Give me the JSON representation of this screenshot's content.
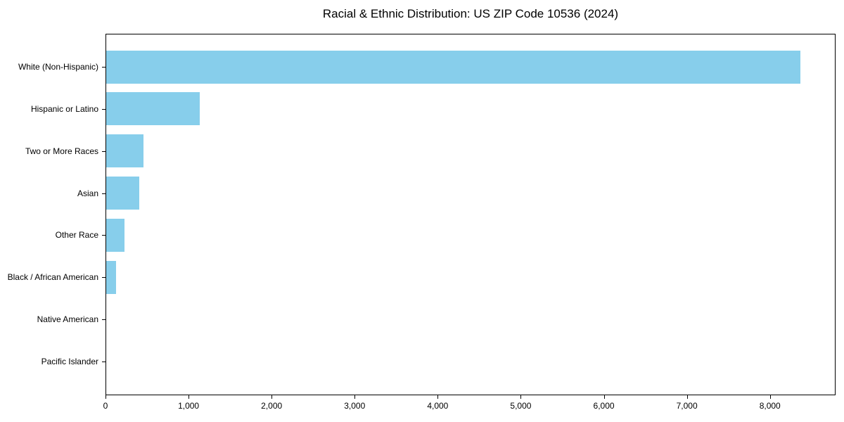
{
  "window": {
    "background_color": "#ffffff",
    "text_color": "#000000"
  },
  "chart_data": {
    "type": "bar",
    "orientation": "horizontal",
    "title": "Racial & Ethnic Distribution: US ZIP Code 10536 (2024)",
    "categories": [
      "White (Non-Hispanic)",
      "Hispanic or Latino",
      "Two or More Races",
      "Asian",
      "Other Race",
      "Black / African American",
      "Native American",
      "Pacific Islander"
    ],
    "values": [
      8360,
      1125,
      450,
      400,
      220,
      120,
      0,
      0
    ],
    "xlabel": "",
    "ylabel": "",
    "xlim": [
      0,
      8790
    ],
    "xticks": [
      {
        "value": 0,
        "label": "0"
      },
      {
        "value": 1000,
        "label": "1,000"
      },
      {
        "value": 2000,
        "label": "2,000"
      },
      {
        "value": 3000,
        "label": "3,000"
      },
      {
        "value": 4000,
        "label": "4,000"
      },
      {
        "value": 5000,
        "label": "5,000"
      },
      {
        "value": 6000,
        "label": "6,000"
      },
      {
        "value": 7000,
        "label": "7,000"
      },
      {
        "value": 8000,
        "label": "8,000"
      }
    ],
    "grid": false,
    "legend": "none",
    "bar_color": "#87CEEB",
    "axis_color": "#000000",
    "text_color": "#000000"
  }
}
